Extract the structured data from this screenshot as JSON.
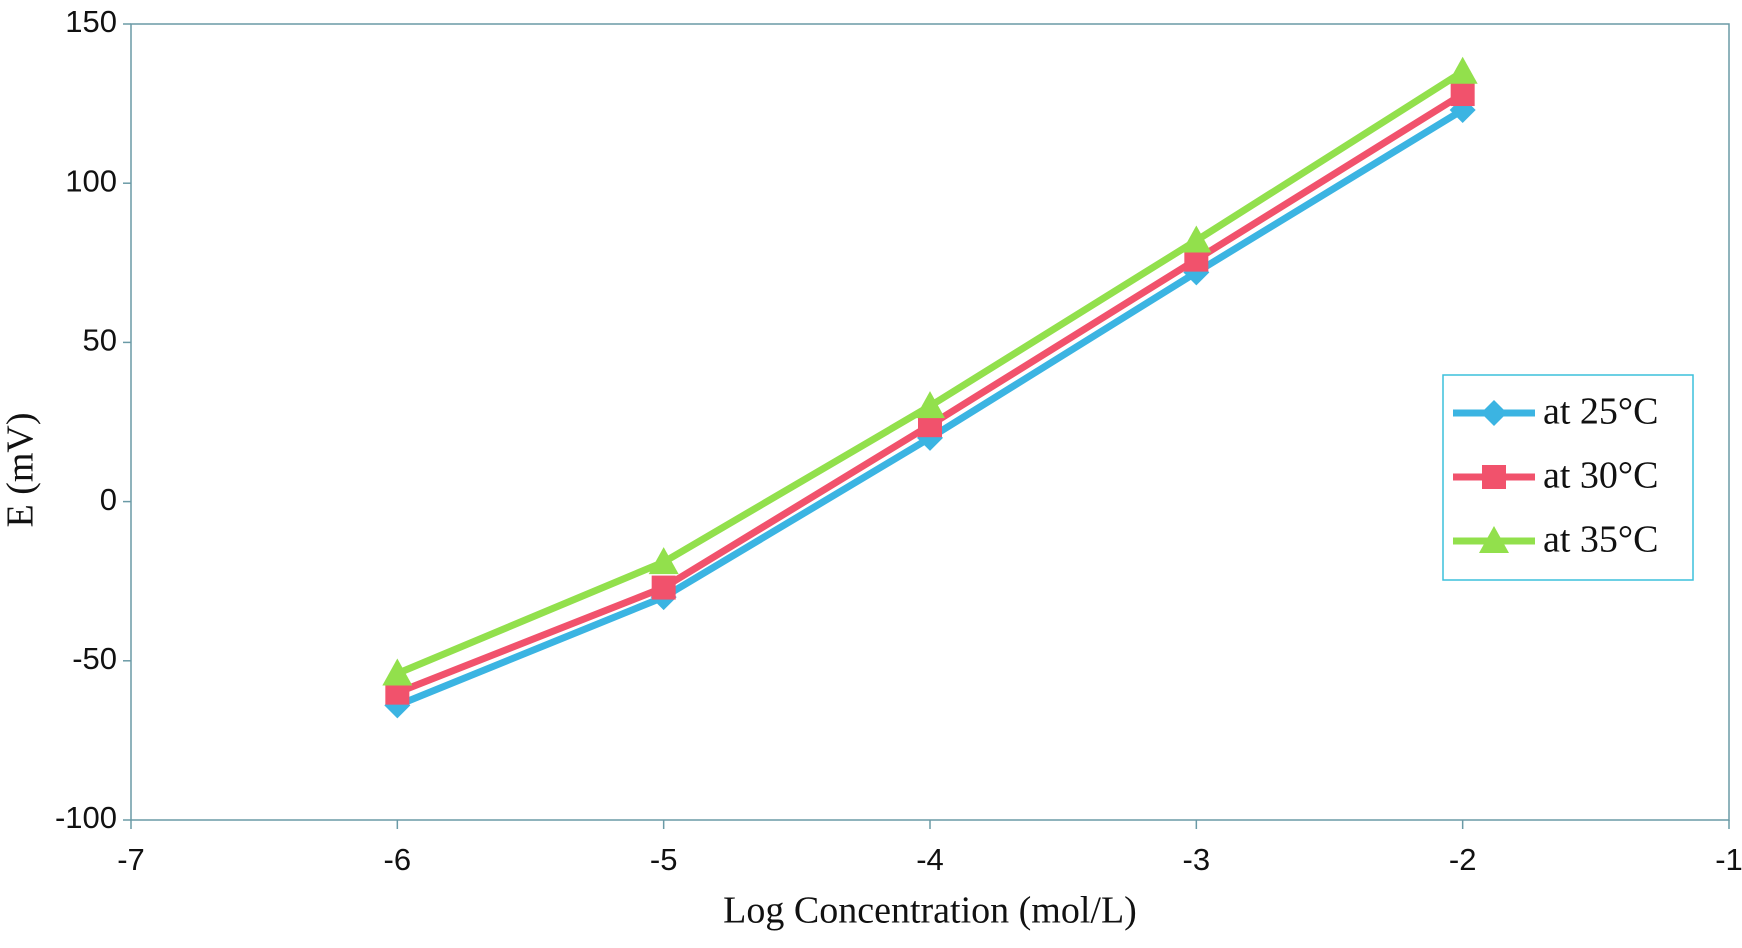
{
  "chart_data": {
    "type": "line",
    "x_label": "Log Concentration (mol/L)",
    "y_label": "E (mV)",
    "x": [
      -6,
      -5,
      -4,
      -3,
      -2
    ],
    "series": [
      {
        "name": "at 25°C",
        "color": "#3bb4e2",
        "marker": "diamond",
        "values": [
          -64,
          -30,
          20,
          72,
          123
        ]
      },
      {
        "name": "at 30°C",
        "color": "#f1526c",
        "marker": "square",
        "values": [
          -60,
          -27,
          24,
          76,
          128
        ]
      },
      {
        "name": "at 35°C",
        "color": "#92e04c",
        "marker": "triangle",
        "values": [
          -54,
          -19,
          30,
          82,
          135
        ]
      }
    ],
    "xlim": [
      -7,
      -1
    ],
    "xticks": [
      -7,
      -6,
      -5,
      -4,
      -3,
      -2,
      -1
    ],
    "ylim": [
      -100,
      150
    ],
    "yticks": [
      -100,
      -50,
      0,
      50,
      100,
      150
    ],
    "grid": false,
    "legend": "right"
  }
}
